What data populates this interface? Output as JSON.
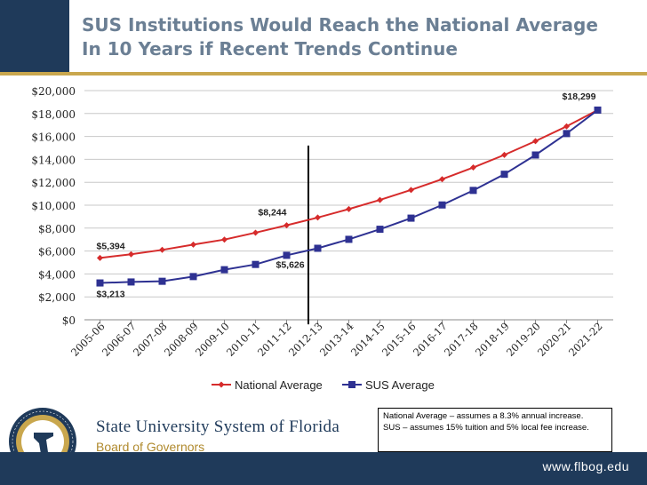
{
  "header": {
    "title_line1": "SUS Institutions Would Reach the National Average",
    "title_line2": "In 10 Years if Recent Trends Continue"
  },
  "branding": {
    "name": "State University System of Florida",
    "board": "Board of Governors",
    "website": "www.flbog.edu",
    "seal_text": "STATE UNIVERSITY SYSTEM OF FLORIDA · BOARD OF GOVERNORS"
  },
  "note": {
    "line1": "National Average – assumes a 8.3% annual increase.",
    "line2": "SUS – assumes 15% tuition and 5% local fee increase."
  },
  "colors": {
    "navy": "#1f3a5a",
    "gold": "#c9a74e",
    "national": "#d62b2b",
    "sus": "#2e3192"
  },
  "chart_data": {
    "type": "line",
    "title": "",
    "categories": [
      "2005-06",
      "2006-07",
      "2007-08",
      "2008-09",
      "2009-10",
      "2010-11",
      "2011-12",
      "2012-13",
      "2013-14",
      "2014-15",
      "2015-16",
      "2016-17",
      "2017-18",
      "2018-19",
      "2019-20",
      "2020-21",
      "2021-22"
    ],
    "series": [
      {
        "name": "National Average",
        "values": [
          5394,
          5720,
          6100,
          6560,
          7000,
          7600,
          8244,
          8920,
          9660,
          10460,
          11330,
          12270,
          13290,
          14390,
          15590,
          16880,
          18299
        ]
      },
      {
        "name": "SUS Average",
        "values": [
          3213,
          3300,
          3360,
          3770,
          4370,
          4830,
          5626,
          6240,
          7020,
          7900,
          8870,
          10020,
          11290,
          12700,
          14380,
          16250,
          18299
        ]
      }
    ],
    "ylim": [
      0,
      20000
    ],
    "yticks": [
      "$0",
      "$2,000",
      "$4,000",
      "$6,000",
      "$8,000",
      "$10,000",
      "$12,000",
      "$14,000",
      "$16,000",
      "$18,000",
      "$20,000"
    ],
    "annotations": [
      {
        "text": "$18,299",
        "series": 0,
        "index": 16
      },
      {
        "text": "$8,244",
        "series": 0,
        "index": 6
      },
      {
        "text": "$5,394",
        "series": 0,
        "index": 0
      },
      {
        "text": "$5,626",
        "series": 1,
        "index": 6
      },
      {
        "text": "$3,213",
        "series": 1,
        "index": 0
      }
    ],
    "marker_line_after": "2011-12",
    "grid": true,
    "legend": "bottom"
  }
}
